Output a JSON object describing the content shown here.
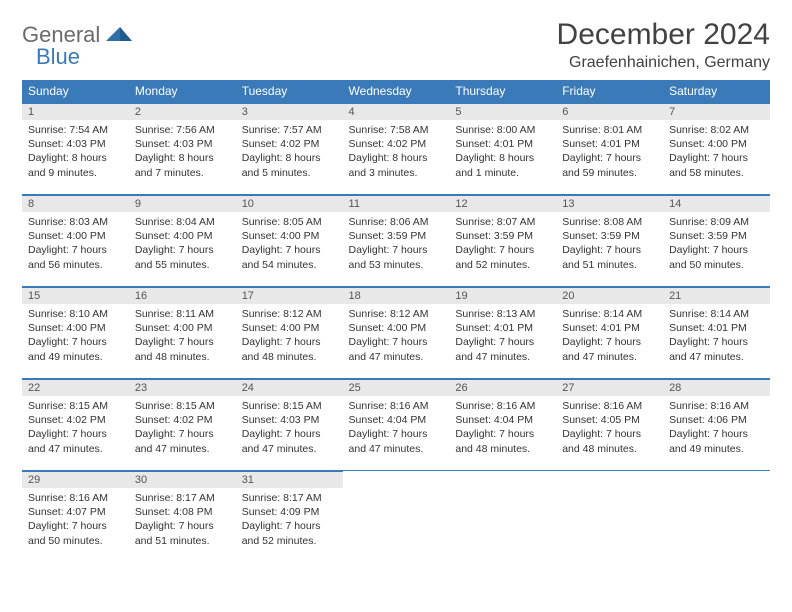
{
  "logo": {
    "text1": "General",
    "text2": "Blue"
  },
  "title": "December 2024",
  "location": "Graefenhainichen, Germany",
  "colors": {
    "header_bg": "#3a7ab8",
    "header_text": "#ffffff",
    "daynum_bg": "#e8e8e8",
    "border": "#3a7ab8",
    "logo_gray": "#6b6b6b",
    "logo_blue": "#3a7ab8",
    "title_color": "#424242"
  },
  "weekdays": [
    "Sunday",
    "Monday",
    "Tuesday",
    "Wednesday",
    "Thursday",
    "Friday",
    "Saturday"
  ],
  "weeks": [
    [
      {
        "n": "1",
        "sunrise": "7:54 AM",
        "sunset": "4:03 PM",
        "daylight": "8 hours and 9 minutes."
      },
      {
        "n": "2",
        "sunrise": "7:56 AM",
        "sunset": "4:03 PM",
        "daylight": "8 hours and 7 minutes."
      },
      {
        "n": "3",
        "sunrise": "7:57 AM",
        "sunset": "4:02 PM",
        "daylight": "8 hours and 5 minutes."
      },
      {
        "n": "4",
        "sunrise": "7:58 AM",
        "sunset": "4:02 PM",
        "daylight": "8 hours and 3 minutes."
      },
      {
        "n": "5",
        "sunrise": "8:00 AM",
        "sunset": "4:01 PM",
        "daylight": "8 hours and 1 minute."
      },
      {
        "n": "6",
        "sunrise": "8:01 AM",
        "sunset": "4:01 PM",
        "daylight": "7 hours and 59 minutes."
      },
      {
        "n": "7",
        "sunrise": "8:02 AM",
        "sunset": "4:00 PM",
        "daylight": "7 hours and 58 minutes."
      }
    ],
    [
      {
        "n": "8",
        "sunrise": "8:03 AM",
        "sunset": "4:00 PM",
        "daylight": "7 hours and 56 minutes."
      },
      {
        "n": "9",
        "sunrise": "8:04 AM",
        "sunset": "4:00 PM",
        "daylight": "7 hours and 55 minutes."
      },
      {
        "n": "10",
        "sunrise": "8:05 AM",
        "sunset": "4:00 PM",
        "daylight": "7 hours and 54 minutes."
      },
      {
        "n": "11",
        "sunrise": "8:06 AM",
        "sunset": "3:59 PM",
        "daylight": "7 hours and 53 minutes."
      },
      {
        "n": "12",
        "sunrise": "8:07 AM",
        "sunset": "3:59 PM",
        "daylight": "7 hours and 52 minutes."
      },
      {
        "n": "13",
        "sunrise": "8:08 AM",
        "sunset": "3:59 PM",
        "daylight": "7 hours and 51 minutes."
      },
      {
        "n": "14",
        "sunrise": "8:09 AM",
        "sunset": "3:59 PM",
        "daylight": "7 hours and 50 minutes."
      }
    ],
    [
      {
        "n": "15",
        "sunrise": "8:10 AM",
        "sunset": "4:00 PM",
        "daylight": "7 hours and 49 minutes."
      },
      {
        "n": "16",
        "sunrise": "8:11 AM",
        "sunset": "4:00 PM",
        "daylight": "7 hours and 48 minutes."
      },
      {
        "n": "17",
        "sunrise": "8:12 AM",
        "sunset": "4:00 PM",
        "daylight": "7 hours and 48 minutes."
      },
      {
        "n": "18",
        "sunrise": "8:12 AM",
        "sunset": "4:00 PM",
        "daylight": "7 hours and 47 minutes."
      },
      {
        "n": "19",
        "sunrise": "8:13 AM",
        "sunset": "4:01 PM",
        "daylight": "7 hours and 47 minutes."
      },
      {
        "n": "20",
        "sunrise": "8:14 AM",
        "sunset": "4:01 PM",
        "daylight": "7 hours and 47 minutes."
      },
      {
        "n": "21",
        "sunrise": "8:14 AM",
        "sunset": "4:01 PM",
        "daylight": "7 hours and 47 minutes."
      }
    ],
    [
      {
        "n": "22",
        "sunrise": "8:15 AM",
        "sunset": "4:02 PM",
        "daylight": "7 hours and 47 minutes."
      },
      {
        "n": "23",
        "sunrise": "8:15 AM",
        "sunset": "4:02 PM",
        "daylight": "7 hours and 47 minutes."
      },
      {
        "n": "24",
        "sunrise": "8:15 AM",
        "sunset": "4:03 PM",
        "daylight": "7 hours and 47 minutes."
      },
      {
        "n": "25",
        "sunrise": "8:16 AM",
        "sunset": "4:04 PM",
        "daylight": "7 hours and 47 minutes."
      },
      {
        "n": "26",
        "sunrise": "8:16 AM",
        "sunset": "4:04 PM",
        "daylight": "7 hours and 48 minutes."
      },
      {
        "n": "27",
        "sunrise": "8:16 AM",
        "sunset": "4:05 PM",
        "daylight": "7 hours and 48 minutes."
      },
      {
        "n": "28",
        "sunrise": "8:16 AM",
        "sunset": "4:06 PM",
        "daylight": "7 hours and 49 minutes."
      }
    ],
    [
      {
        "n": "29",
        "sunrise": "8:16 AM",
        "sunset": "4:07 PM",
        "daylight": "7 hours and 50 minutes."
      },
      {
        "n": "30",
        "sunrise": "8:17 AM",
        "sunset": "4:08 PM",
        "daylight": "7 hours and 51 minutes."
      },
      {
        "n": "31",
        "sunrise": "8:17 AM",
        "sunset": "4:09 PM",
        "daylight": "7 hours and 52 minutes."
      },
      null,
      null,
      null,
      null
    ]
  ],
  "labels": {
    "sunrise": "Sunrise:",
    "sunset": "Sunset:",
    "daylight": "Daylight:"
  }
}
